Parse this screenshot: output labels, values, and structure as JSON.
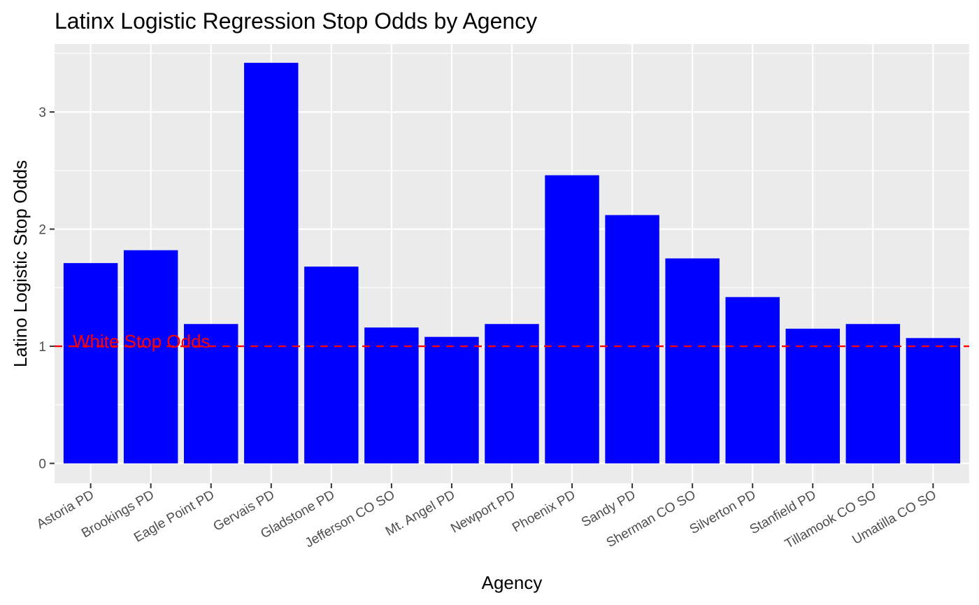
{
  "chart_data": {
    "type": "bar",
    "title": "Latinx Logistic Regression Stop Odds by Agency",
    "xlabel": "Agency",
    "ylabel": "Latino Logistic Stop Odds",
    "categories": [
      "Astoria PD",
      "Brookings PD",
      "Eagle Point PD",
      "Gervais PD",
      "Gladstone PD",
      "Jefferson CO SO",
      "Mt. Angel PD",
      "Newport PD",
      "Phoenix PD",
      "Sandy PD",
      "Sherman CO SO",
      "Silverton PD",
      "Stanfield PD",
      "Tillamook CO SO",
      "Umatilla CO SO"
    ],
    "values": [
      1.71,
      1.82,
      1.19,
      3.42,
      1.68,
      1.16,
      1.08,
      1.19,
      2.46,
      2.12,
      1.75,
      1.42,
      1.15,
      1.19,
      1.07
    ],
    "ylim": [
      -0.17,
      3.58
    ],
    "yticks": [
      0,
      1,
      2,
      3
    ],
    "bar_color": "#0000FF",
    "reference_line": {
      "y": 1,
      "label": "White Stop Odds",
      "color": "#FF0000",
      "style": "dashed"
    },
    "panel_background": "#EBEBEB",
    "grid_color": "#FFFFFF",
    "grid": true,
    "legend": "none"
  }
}
